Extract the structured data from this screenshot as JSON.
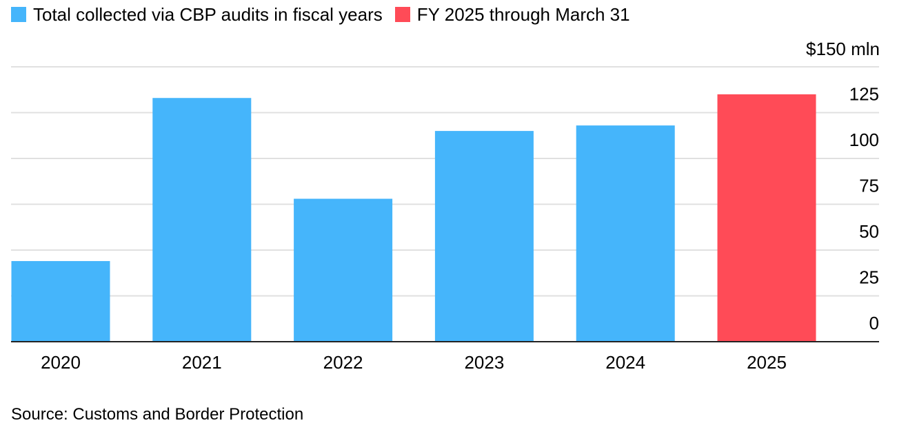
{
  "legend": {
    "items": [
      {
        "label": "Total collected via CBP audits in fiscal years",
        "color": "#45b5fb"
      },
      {
        "label": "FY 2025 through March 31",
        "color": "#ff4b57"
      }
    ]
  },
  "y_unit_label": "$150 mln",
  "source": "Source: Customs and Border Protection",
  "chart_data": {
    "type": "bar",
    "title": "",
    "xlabel": "",
    "ylabel": "",
    "categories": [
      "2020",
      "2021",
      "2022",
      "2023",
      "2024",
      "2025"
    ],
    "values": [
      44,
      133,
      78,
      115,
      118,
      135
    ],
    "series_index": [
      0,
      0,
      0,
      0,
      0,
      1
    ],
    "ylim": [
      0,
      150
    ],
    "yticks": [
      0,
      25,
      50,
      75,
      100,
      125
    ],
    "y_axis_position": "right",
    "grid": true,
    "legend_position": "top-left"
  }
}
